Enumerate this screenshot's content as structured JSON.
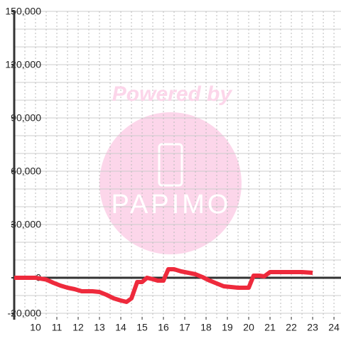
{
  "chart_data": {
    "type": "line",
    "watermark": {
      "title": "Powered by",
      "brand": "PAPIMO"
    },
    "x": [
      9,
      10,
      10.5,
      10.83,
      11.17,
      11.5,
      11.83,
      12.17,
      12.67,
      13,
      13.33,
      13.67,
      14,
      14.27,
      14.5,
      14.77,
      15,
      15.23,
      15.5,
      15.73,
      16,
      16.23,
      16.5,
      16.83,
      17.17,
      17.5,
      17.83,
      18.17,
      18.5,
      18.83,
      19.17,
      19.5,
      20,
      20.23,
      20.5,
      20.73,
      21,
      21.5,
      22,
      22.5,
      23
    ],
    "series": [
      {
        "color": "#ee2a3c",
        "values": [
          0,
          0,
          -1000,
          -2800,
          -4400,
          -5600,
          -6400,
          -7600,
          -7600,
          -8000,
          -9600,
          -11600,
          -12800,
          -13600,
          -11600,
          -2400,
          -2400,
          0,
          -800,
          -1600,
          -1600,
          4800,
          4800,
          3600,
          2800,
          2000,
          400,
          -1600,
          -3200,
          -4800,
          -5200,
          -5600,
          -5600,
          1200,
          1200,
          800,
          3200,
          3200,
          3200,
          3200,
          2800
        ]
      }
    ],
    "xlim": [
      9,
      24.33
    ],
    "ylim": [
      -20000,
      150000
    ],
    "xticks": [
      10,
      11,
      12,
      13,
      14,
      15,
      16,
      17,
      18,
      19,
      20,
      21,
      22,
      23,
      24
    ],
    "yticks": [
      {
        "value": -20000,
        "label": "-20,000"
      },
      0,
      {
        "value": 30000,
        "label": "30,000"
      },
      {
        "value": 60000,
        "label": "60,000"
      },
      {
        "value": 90000,
        "label": "90,000"
      },
      {
        "value": 120000,
        "label": "120,000"
      },
      {
        "value": 150000,
        "label": "150,000"
      }
    ],
    "ygrid_step": 10000,
    "xgrid_step": 0.5,
    "grid": true
  }
}
